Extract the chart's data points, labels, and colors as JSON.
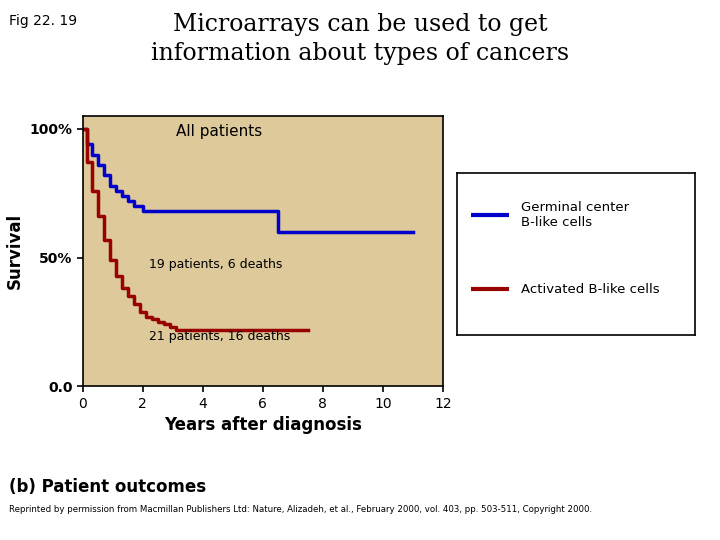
{
  "title": "Microarrays can be used to get\ninformation about types of cancers",
  "fig_label": "Fig 22. 19",
  "xlabel": "Years after diagnosis",
  "ylabel": "Survival",
  "plot_title": "All patients",
  "bg_color": "#DEC99A",
  "annotation1": "19 patients, 6 deaths",
  "annotation2": "21 patients, 16 deaths",
  "blue_color": "#0000CC",
  "red_color": "#990000",
  "blue_x": [
    0,
    0.15,
    0.3,
    0.5,
    0.7,
    0.9,
    1.1,
    1.3,
    1.5,
    1.7,
    2.0,
    4.0,
    6.5,
    6.5,
    11.0
  ],
  "blue_y": [
    1.0,
    0.94,
    0.9,
    0.86,
    0.82,
    0.78,
    0.76,
    0.74,
    0.72,
    0.7,
    0.68,
    0.68,
    0.68,
    0.6,
    0.6
  ],
  "red_x": [
    0,
    0.15,
    0.3,
    0.5,
    0.7,
    0.9,
    1.1,
    1.3,
    1.5,
    1.7,
    1.9,
    2.1,
    2.3,
    2.5,
    2.7,
    2.9,
    3.1,
    7.5
  ],
  "red_y": [
    1.0,
    0.87,
    0.76,
    0.66,
    0.57,
    0.49,
    0.43,
    0.38,
    0.35,
    0.32,
    0.29,
    0.27,
    0.26,
    0.25,
    0.24,
    0.23,
    0.22,
    0.22
  ],
  "xlim": [
    0,
    12
  ],
  "ylim": [
    0,
    1.05
  ],
  "xticks": [
    0,
    2,
    4,
    6,
    8,
    10,
    12
  ],
  "yticks": [
    0.0,
    0.5,
    1.0
  ],
  "ytick_labels": [
    "0.0",
    "50%",
    "100%"
  ],
  "bottom_label": "(b) Patient outcomes",
  "citation": "Reprinted by permission from Macmillan Publishers Ltd: Nature, Alizadeh, et al., February 2000, vol. 403, pp. 503-511, Copyright 2000."
}
